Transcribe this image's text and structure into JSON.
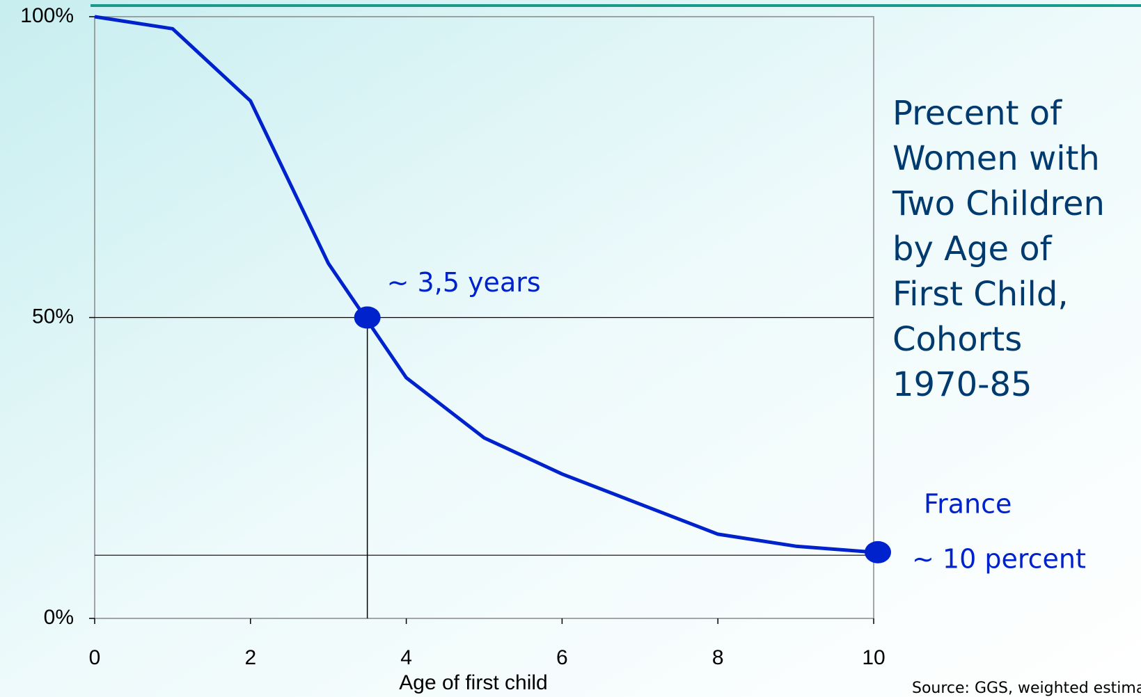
{
  "chart_data": {
    "type": "line",
    "title": [
      "Precent of",
      "Women with",
      "Two Children",
      "by Age of",
      "First Child,",
      "Cohorts",
      "1970-85"
    ],
    "x_label": "Age of first child",
    "source": "Source:  GGS, weighted estimates",
    "x": [
      0,
      1,
      2,
      3,
      4,
      5,
      6,
      7,
      8,
      9,
      10
    ],
    "series": [
      {
        "name": "France",
        "color": "#0022cc",
        "values": [
          100,
          98,
          86,
          59,
          40,
          30,
          24,
          19,
          14,
          12,
          11
        ]
      }
    ],
    "xlim": [
      0,
      10
    ],
    "xticks": [
      0,
      2,
      4,
      6,
      8,
      10
    ],
    "ylim": [
      0,
      100
    ],
    "yticks": [
      {
        "value": 0,
        "label": "0%"
      },
      {
        "value": 50,
        "label": "50%"
      },
      {
        "value": 100,
        "label": "100%"
      }
    ],
    "markers": [
      {
        "x": 3.5,
        "y": 50,
        "label": "~ 3,5 years"
      },
      {
        "x": 10,
        "y": 11,
        "label": "~ 10 percent"
      }
    ],
    "reference_y": [
      50,
      10.5
    ]
  }
}
